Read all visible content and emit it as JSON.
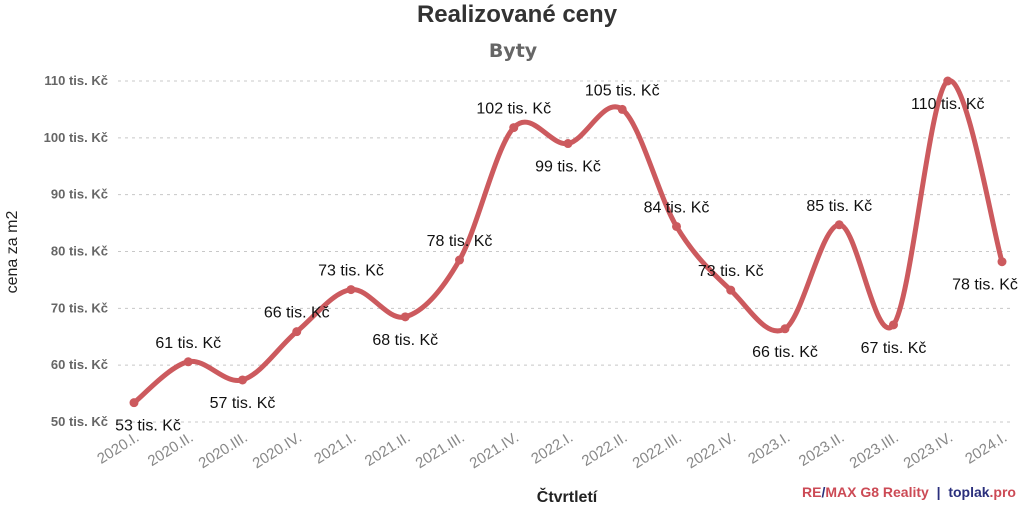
{
  "chart_data": {
    "type": "line",
    "title": "Realizované ceny",
    "subtitle": "Byty",
    "xlabel": "Čtvrtletí",
    "ylabel": "cena za m2",
    "ylim": [
      50,
      110
    ],
    "yticks": [
      50,
      60,
      70,
      80,
      90,
      100,
      110
    ],
    "ytick_labels": [
      "50 tis. Kč",
      "60 tis. Kč",
      "70 tis. Kč",
      "80 tis. Kč",
      "90 tis. Kč",
      "100 tis. Kč",
      "110 tis. Kč"
    ],
    "grid": true,
    "line_style": "smooth",
    "categories": [
      "2020.I.",
      "2020.II.",
      "2020.III.",
      "2020.IV.",
      "2021.I.",
      "2021.II.",
      "2021.III.",
      "2021.IV.",
      "2022.I.",
      "2022.II.",
      "2022.III.",
      "2022.IV.",
      "2023.I.",
      "2023.II.",
      "2023.III.",
      "2023.IV.",
      "2024.I."
    ],
    "series": [
      {
        "color": "#cc5a5e",
        "values": [
          53.4,
          60.6,
          57.4,
          65.9,
          73.3,
          68.5,
          78.5,
          101.8,
          99.0,
          105.0,
          84.4,
          73.2,
          66.4,
          84.7,
          67.1,
          110.0,
          78.2
        ],
        "labels": [
          "53 tis. Kč",
          "61 tis. Kč",
          "57 tis. Kč",
          "66 tis. Kč",
          "73 tis. Kč",
          "68 tis. Kč",
          "78 tis. Kč",
          "102 tis. Kč",
          "99 tis. Kč",
          "105 tis. Kč",
          "84 tis. Kč",
          "73 tis. Kč",
          "66 tis. Kč",
          "85 tis. Kč",
          "67 tis. Kč",
          "110 tis. Kč",
          "78 tis. Kč"
        ],
        "label_positions": [
          "below",
          "above",
          "below",
          "above",
          "above",
          "below",
          "above",
          "above",
          "below",
          "above",
          "above",
          "above",
          "below",
          "above",
          "below",
          "below",
          "below"
        ]
      }
    ]
  },
  "credits": {
    "remax_a": "RE",
    "slash": "/",
    "remax_b": "MAX G8 Reality",
    "separator": "|",
    "toplak": "toplak",
    "dot_pro": ".pro",
    "red_color": "#cc4a55",
    "blue_color": "#2a2f7c"
  }
}
